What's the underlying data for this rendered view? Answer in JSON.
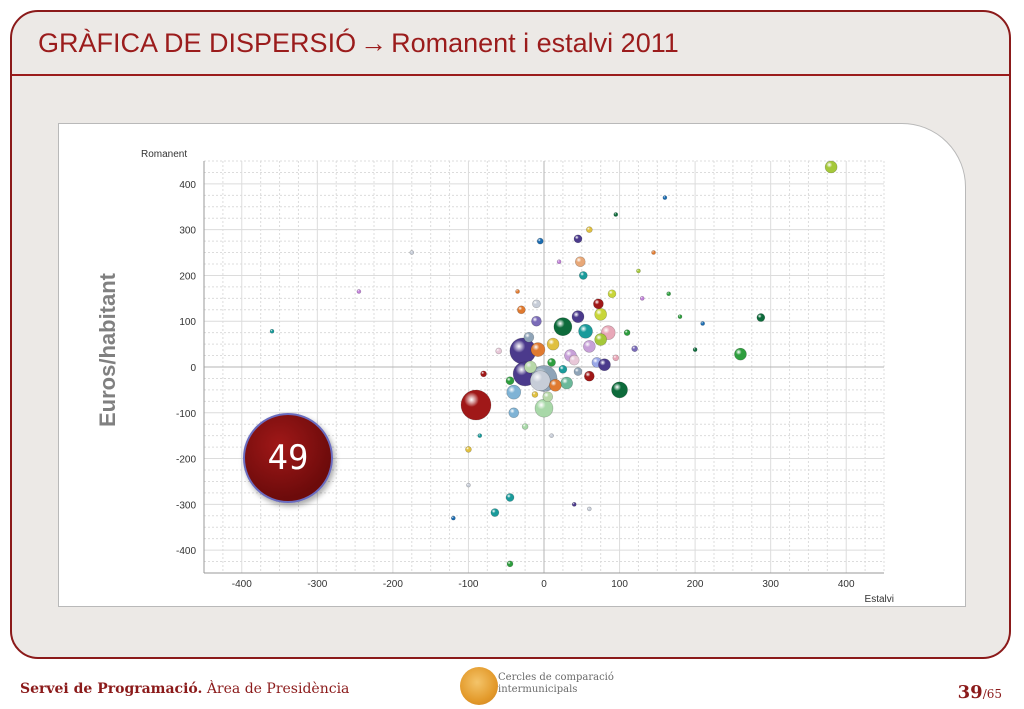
{
  "slide": {
    "title_main": "GRÀFICA DE DISPERSIÓ",
    "title_arrow": "→",
    "title_sub": "Romanent i estalvi 2011",
    "badge": "49",
    "footer": {
      "org": "Servei de Programació.",
      "area": " Àrea de Presidència",
      "logo_line1": "Cercles de comparació",
      "logo_line2": "intermunicipals",
      "page_current": "39",
      "page_total": "/65"
    },
    "colors": {
      "accent": "#9b1c1c",
      "frame_bg": "#ece9e6"
    }
  },
  "chart_data": {
    "type": "scatter",
    "title": "",
    "xlabel": "Estalvi",
    "ylabel": "Romanent",
    "side_label": "Euros/habitant",
    "xlim": [
      -450,
      450
    ],
    "ylim": [
      -450,
      450
    ],
    "xticks": [
      -400,
      -300,
      -200,
      -100,
      0,
      100,
      200,
      300,
      400
    ],
    "yticks": [
      400,
      300,
      200,
      100,
      0,
      -100,
      -200,
      -300,
      -400
    ],
    "grid": true,
    "points": [
      {
        "x": -90,
        "y": -83,
        "r": 15,
        "c": "#a01818"
      },
      {
        "x": -28,
        "y": 35,
        "r": 13,
        "c": "#4b3a8c"
      },
      {
        "x": -25,
        "y": -15,
        "r": 12,
        "c": "#4b3a8c"
      },
      {
        "x": 0,
        "y": -25,
        "r": 13,
        "c": "#8fa4b8"
      },
      {
        "x": -5,
        "y": -30,
        "r": 10,
        "c": "#c7cdd8"
      },
      {
        "x": 25,
        "y": 88,
        "r": 9,
        "c": "#0d6b3b"
      },
      {
        "x": 100,
        "y": -50,
        "r": 8,
        "c": "#0d6b3b"
      },
      {
        "x": 0,
        "y": -90,
        "r": 9,
        "c": "#a8d8a8"
      },
      {
        "x": -40,
        "y": -55,
        "r": 7,
        "c": "#7fb3d5"
      },
      {
        "x": 380,
        "y": 437,
        "r": 6,
        "c": "#a5c83a"
      },
      {
        "x": 260,
        "y": 28,
        "r": 6,
        "c": "#2e9e3e"
      },
      {
        "x": 287,
        "y": 108,
        "r": 4,
        "c": "#0d6b3b"
      },
      {
        "x": 85,
        "y": 75,
        "r": 7,
        "c": "#e8a8b8"
      },
      {
        "x": 55,
        "y": 78,
        "r": 7,
        "c": "#1a9b9b"
      },
      {
        "x": 45,
        "y": 110,
        "r": 6,
        "c": "#4b3a8c"
      },
      {
        "x": 75,
        "y": 115,
        "r": 6,
        "c": "#c8d63a"
      },
      {
        "x": 75,
        "y": 60,
        "r": 6,
        "c": "#a5c83a"
      },
      {
        "x": 60,
        "y": 45,
        "r": 6,
        "c": "#c7a0d8"
      },
      {
        "x": -10,
        "y": 100,
        "r": 5,
        "c": "#7a6bb8"
      },
      {
        "x": 12,
        "y": 50,
        "r": 6,
        "c": "#e0c040"
      },
      {
        "x": -8,
        "y": 38,
        "r": 7,
        "c": "#e07a30"
      },
      {
        "x": 35,
        "y": 25,
        "r": 6,
        "c": "#c7a0d8"
      },
      {
        "x": 70,
        "y": 10,
        "r": 5,
        "c": "#9aa8e8"
      },
      {
        "x": 30,
        "y": -35,
        "r": 6,
        "c": "#6bb89a"
      },
      {
        "x": 15,
        "y": -40,
        "r": 6,
        "c": "#e07a30"
      },
      {
        "x": 60,
        "y": -20,
        "r": 5,
        "c": "#a01818"
      },
      {
        "x": 80,
        "y": 5,
        "r": 6,
        "c": "#4b3a8c"
      },
      {
        "x": 40,
        "y": 15,
        "r": 5,
        "c": "#e8c8d8"
      },
      {
        "x": -18,
        "y": 0,
        "r": 6,
        "c": "#b8d8a8"
      },
      {
        "x": -45,
        "y": -30,
        "r": 4,
        "c": "#2e9e3e"
      },
      {
        "x": -40,
        "y": -100,
        "r": 5,
        "c": "#7fb3d5"
      },
      {
        "x": 48,
        "y": 230,
        "r": 5,
        "c": "#e8a878"
      },
      {
        "x": 52,
        "y": 200,
        "r": 4,
        "c": "#1a9b9b"
      },
      {
        "x": 45,
        "y": 280,
        "r": 4,
        "c": "#4b3a8c"
      },
      {
        "x": -10,
        "y": 138,
        "r": 4,
        "c": "#c7cdd8"
      },
      {
        "x": 72,
        "y": 138,
        "r": 5,
        "c": "#a01818"
      },
      {
        "x": 90,
        "y": 160,
        "r": 4,
        "c": "#c8d63a"
      },
      {
        "x": -30,
        "y": 125,
        "r": 4,
        "c": "#e07a30"
      },
      {
        "x": -45,
        "y": -285,
        "r": 4,
        "c": "#1a9b9b"
      },
      {
        "x": -65,
        "y": -318,
        "r": 4,
        "c": "#1a9b9b"
      },
      {
        "x": -45,
        "y": -430,
        "r": 3,
        "c": "#2e9e3e"
      },
      {
        "x": -245,
        "y": 165,
        "r": 2,
        "c": "#c080d8"
      },
      {
        "x": -360,
        "y": 78,
        "r": 2,
        "c": "#1a9b9b"
      },
      {
        "x": -80,
        "y": -15,
        "r": 3,
        "c": "#a01818"
      },
      {
        "x": 160,
        "y": 370,
        "r": 2,
        "c": "#1a6bb0"
      },
      {
        "x": 165,
        "y": 160,
        "r": 2,
        "c": "#2e9e3e"
      },
      {
        "x": 145,
        "y": 250,
        "r": 2,
        "c": "#e07a30"
      },
      {
        "x": 125,
        "y": 210,
        "r": 2,
        "c": "#a5c83a"
      },
      {
        "x": 95,
        "y": 333,
        "r": 2,
        "c": "#0d6b3b"
      },
      {
        "x": 130,
        "y": 150,
        "r": 2,
        "c": "#c080d8"
      },
      {
        "x": 200,
        "y": 38,
        "r": 2,
        "c": "#0d6b3b"
      },
      {
        "x": 210,
        "y": 95,
        "r": 2,
        "c": "#1a6bb0"
      },
      {
        "x": 60,
        "y": 300,
        "r": 3,
        "c": "#e0c040"
      },
      {
        "x": 10,
        "y": -150,
        "r": 2,
        "c": "#c7cdd8"
      },
      {
        "x": -100,
        "y": -180,
        "r": 3,
        "c": "#e0c040"
      },
      {
        "x": -100,
        "y": -258,
        "r": 2,
        "c": "#c7cdd8"
      },
      {
        "x": -120,
        "y": -330,
        "r": 2,
        "c": "#1a6bb0"
      },
      {
        "x": -25,
        "y": -130,
        "r": 3,
        "c": "#a8d8a8"
      },
      {
        "x": -85,
        "y": -150,
        "r": 2,
        "c": "#1a9b9b"
      },
      {
        "x": 40,
        "y": -300,
        "r": 2,
        "c": "#4b3a8c"
      },
      {
        "x": 60,
        "y": -310,
        "r": 2,
        "c": "#c7cdd8"
      },
      {
        "x": -5,
        "y": 275,
        "r": 3,
        "c": "#1a6bb0"
      },
      {
        "x": -20,
        "y": 65,
        "r": 5,
        "c": "#8fa4b8"
      },
      {
        "x": 5,
        "y": -65,
        "r": 5,
        "c": "#b8d8a8"
      },
      {
        "x": -60,
        "y": 35,
        "r": 3,
        "c": "#e8c8d8"
      },
      {
        "x": 110,
        "y": 75,
        "r": 3,
        "c": "#2e9e3e"
      },
      {
        "x": 120,
        "y": 40,
        "r": 3,
        "c": "#7a6bb8"
      },
      {
        "x": -35,
        "y": 165,
        "r": 2,
        "c": "#e07a30"
      },
      {
        "x": 20,
        "y": 230,
        "r": 2,
        "c": "#c080d8"
      },
      {
        "x": 180,
        "y": 110,
        "r": 2,
        "c": "#2e9e3e"
      },
      {
        "x": -175,
        "y": 250,
        "r": 2,
        "c": "#c7cdd8"
      },
      {
        "x": 10,
        "y": 10,
        "r": 4,
        "c": "#2e9e3e"
      },
      {
        "x": 25,
        "y": -5,
        "r": 4,
        "c": "#1a9b9b"
      },
      {
        "x": -12,
        "y": -60,
        "r": 3,
        "c": "#e0c040"
      },
      {
        "x": 45,
        "y": -10,
        "r": 4,
        "c": "#8fa4b8"
      },
      {
        "x": 95,
        "y": 20,
        "r": 3,
        "c": "#e8a8b8"
      }
    ]
  }
}
